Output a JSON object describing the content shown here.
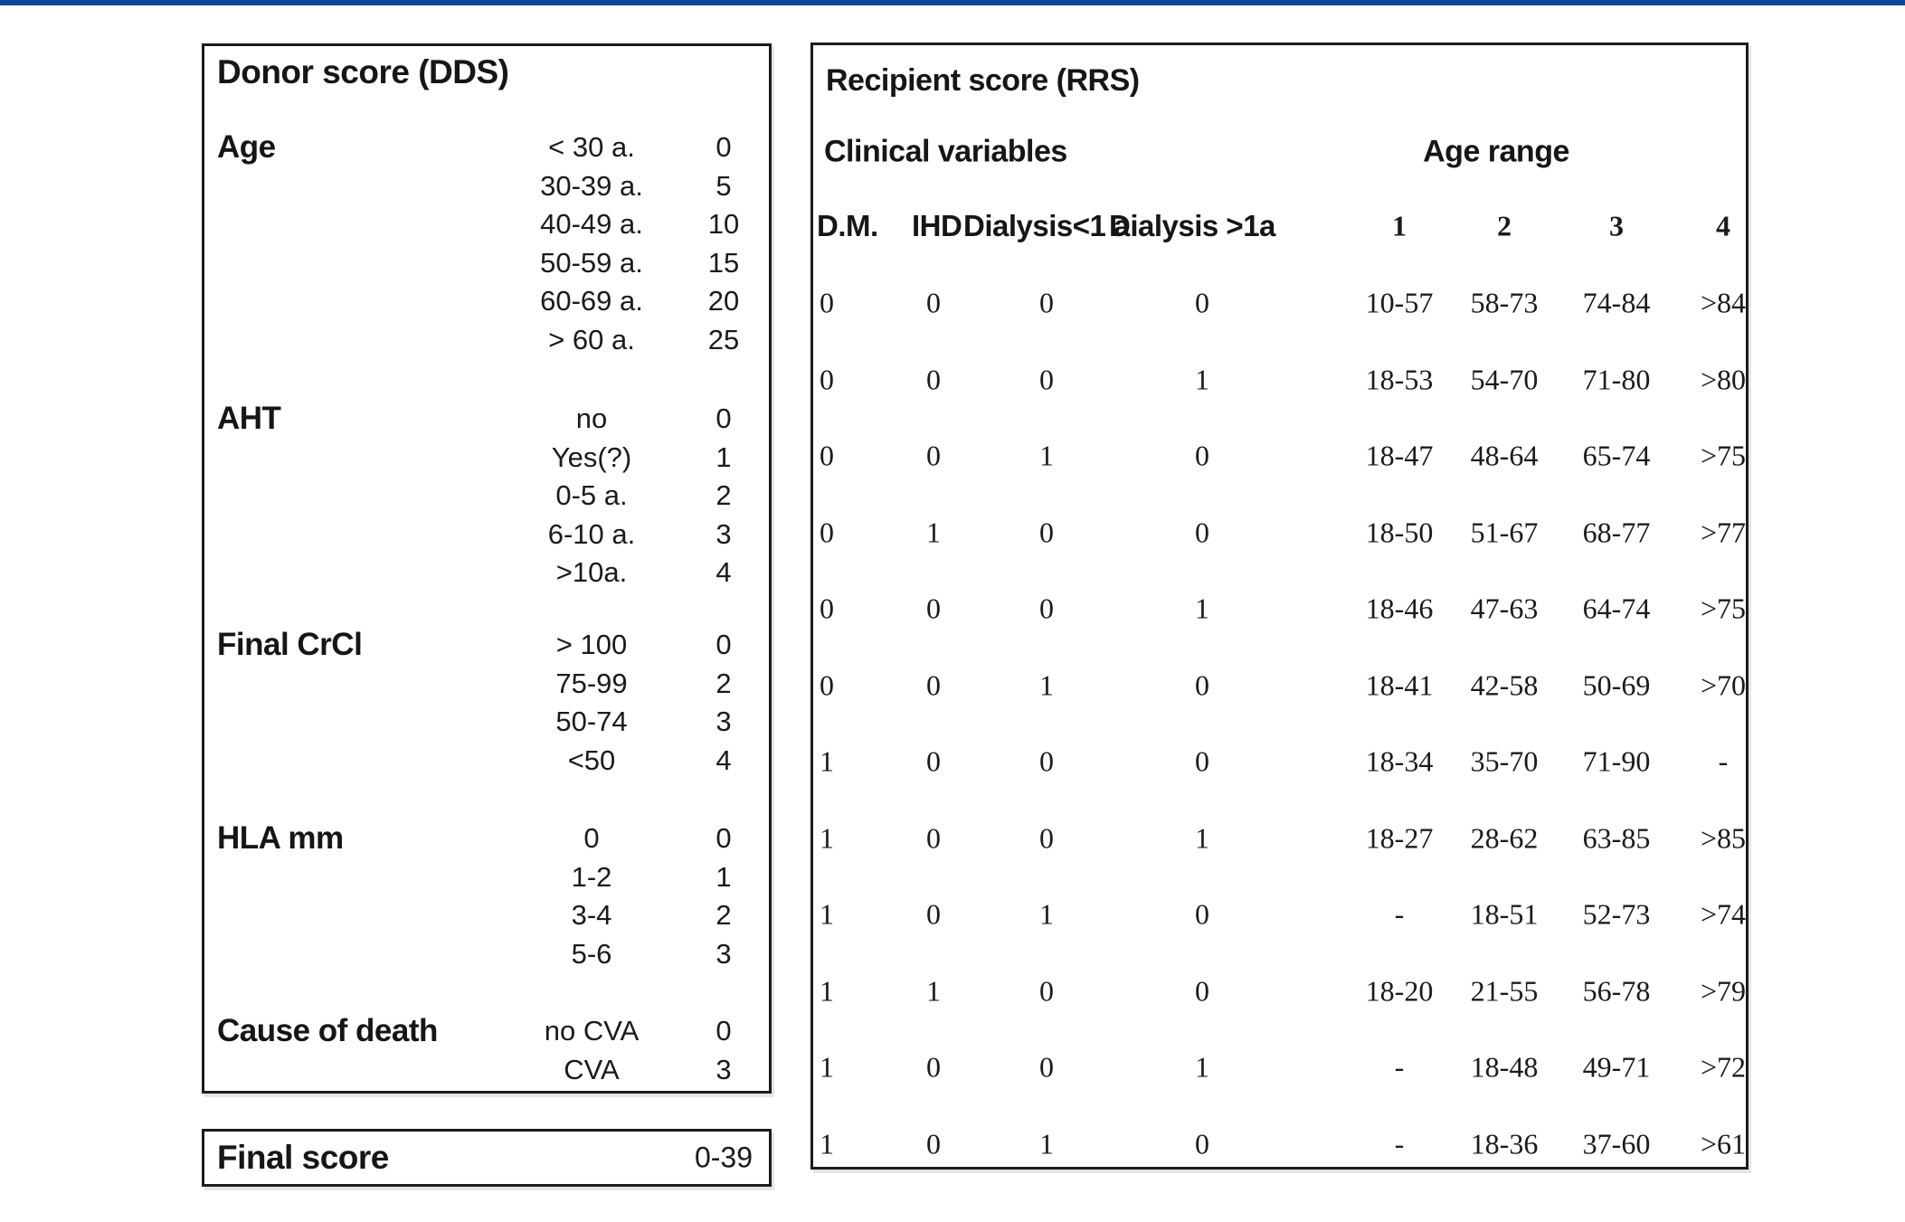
{
  "page": {
    "top_bar_color": "#0d4a96",
    "background_color": "#ffffff",
    "panel_border_color": "#1c1c1c",
    "text_color": "#151515"
  },
  "donor_panel": {
    "title": "Donor score (DDS)",
    "sections": [
      {
        "label": "Age",
        "rows": [
          {
            "range": "< 30 a.",
            "score": "0"
          },
          {
            "range": "30-39 a.",
            "score": "5"
          },
          {
            "range": "40-49 a.",
            "score": "10"
          },
          {
            "range": "50-59 a.",
            "score": "15"
          },
          {
            "range": "60-69 a.",
            "score": "20"
          },
          {
            "range": "> 60 a.",
            "score": "25"
          }
        ]
      },
      {
        "label": "AHT",
        "rows": [
          {
            "range": "no",
            "score": "0"
          },
          {
            "range": "Yes(?)",
            "score": "1"
          },
          {
            "range": "0-5 a.",
            "score": "2"
          },
          {
            "range": "6-10 a.",
            "score": "3"
          },
          {
            "range": ">10a.",
            "score": "4"
          }
        ]
      },
      {
        "label": "Final CrCl",
        "rows": [
          {
            "range": "> 100",
            "score": "0"
          },
          {
            "range": "75-99",
            "score": "2"
          },
          {
            "range": "50-74",
            "score": "3"
          },
          {
            "range": "<50",
            "score": "4"
          }
        ]
      },
      {
        "label": "HLA mm",
        "rows": [
          {
            "range": "0",
            "score": "0"
          },
          {
            "range": "1-2",
            "score": "1"
          },
          {
            "range": "3-4",
            "score": "2"
          },
          {
            "range": "5-6",
            "score": "3"
          }
        ]
      },
      {
        "label": "Cause of death",
        "rows": [
          {
            "range": "no CVA",
            "score": "0"
          },
          {
            "range": "CVA",
            "score": "3"
          }
        ]
      }
    ]
  },
  "final_score_panel": {
    "label": "Final score",
    "value": "0-39"
  },
  "recipient_panel": {
    "title": "Recipient score (RRS)",
    "group_headers": {
      "clinical": "Clinical variables",
      "age": "Age range"
    },
    "clinical_columns": [
      "D.M.",
      "IHD",
      "Dialysis<1 a",
      "Dialysis >1a"
    ],
    "age_columns": [
      "1",
      "2",
      "3",
      "4"
    ],
    "rows": [
      {
        "clinical": [
          "0",
          "0",
          "0",
          "0"
        ],
        "age": [
          "10-57",
          "58-73",
          "74-84",
          ">84"
        ]
      },
      {
        "clinical": [
          "0",
          "0",
          "0",
          "1"
        ],
        "age": [
          "18-53",
          "54-70",
          "71-80",
          ">80"
        ]
      },
      {
        "clinical": [
          "0",
          "0",
          "1",
          "0"
        ],
        "age": [
          "18-47",
          "48-64",
          "65-74",
          ">75"
        ]
      },
      {
        "clinical": [
          "0",
          "1",
          "0",
          "0"
        ],
        "age": [
          "18-50",
          "51-67",
          "68-77",
          ">77"
        ]
      },
      {
        "clinical": [
          "0",
          "0",
          "0",
          "1"
        ],
        "age": [
          "18-46",
          "47-63",
          "64-74",
          ">75"
        ]
      },
      {
        "clinical": [
          "0",
          "0",
          "1",
          "0"
        ],
        "age": [
          "18-41",
          "42-58",
          "50-69",
          ">70"
        ]
      },
      {
        "clinical": [
          "1",
          "0",
          "0",
          "0"
        ],
        "age": [
          "18-34",
          "35-70",
          "71-90",
          "-"
        ]
      },
      {
        "clinical": [
          "1",
          "0",
          "0",
          "1"
        ],
        "age": [
          "18-27",
          "28-62",
          "63-85",
          ">85"
        ]
      },
      {
        "clinical": [
          "1",
          "0",
          "1",
          "0"
        ],
        "age": [
          "-",
          "18-51",
          "52-73",
          ">74"
        ]
      },
      {
        "clinical": [
          "1",
          "1",
          "0",
          "0"
        ],
        "age": [
          "18-20",
          "21-55",
          "56-78",
          ">79"
        ]
      },
      {
        "clinical": [
          "1",
          "0",
          "0",
          "1"
        ],
        "age": [
          "-",
          "18-48",
          "49-71",
          ">72"
        ]
      },
      {
        "clinical": [
          "1",
          "0",
          "1",
          "0"
        ],
        "age": [
          "-",
          "18-36",
          "37-60",
          ">61"
        ]
      }
    ]
  }
}
